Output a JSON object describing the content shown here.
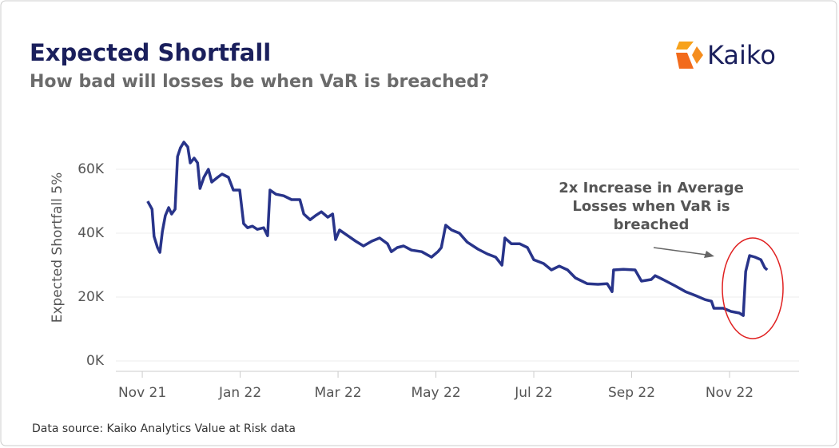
{
  "chart_data": {
    "type": "line",
    "title": "Expected Shortfall",
    "subtitle": "How bad will losses be when VaR is breached?",
    "brand": "Kaiko",
    "y_label": "Expected Shortfall 5%",
    "annotation": "2x Increase in Average Losses when VaR is breached",
    "source": "Data source: Kaiko Analytics Value at Risk data",
    "xlim": [
      -0.54,
      13.42
    ],
    "xticks": [
      {
        "value": 0,
        "label": "Nov 21"
      },
      {
        "value": 2,
        "label": "Jan 22"
      },
      {
        "value": 4,
        "label": "Mar 22"
      },
      {
        "value": 6,
        "label": "May 22"
      },
      {
        "value": 8,
        "label": "Jul 22"
      },
      {
        "value": 10,
        "label": "Sep 22"
      },
      {
        "value": 12,
        "label": "Nov 22"
      }
    ],
    "ylim": [
      -3250,
      70000
    ],
    "yticks": [
      {
        "value": 0,
        "label": "0K"
      },
      {
        "value": 20000,
        "label": "20K"
      },
      {
        "value": 40000,
        "label": "40K"
      },
      {
        "value": 60000,
        "label": "60K"
      }
    ],
    "grid": true,
    "series": [
      {
        "name": "Expected Shortfall 5%",
        "color": "#28348a",
        "x": [
          0.11,
          0.2,
          0.24,
          0.31,
          0.36,
          0.41,
          0.47,
          0.54,
          0.6,
          0.67,
          0.72,
          0.78,
          0.85,
          0.93,
          0.98,
          1.06,
          1.13,
          1.18,
          1.26,
          1.35,
          1.42,
          1.54,
          1.63,
          1.76,
          1.86,
          1.99,
          2.07,
          2.15,
          2.25,
          2.35,
          2.48,
          2.56,
          2.61,
          2.73,
          2.89,
          3.05,
          3.22,
          3.3,
          3.43,
          3.54,
          3.66,
          3.79,
          3.89,
          3.95,
          4.03,
          4.2,
          4.36,
          4.52,
          4.69,
          4.85,
          5.01,
          5.09,
          5.21,
          5.34,
          5.5,
          5.71,
          5.91,
          6.04,
          6.11,
          6.2,
          6.32,
          6.48,
          6.64,
          6.86,
          7.05,
          7.22,
          7.35,
          7.41,
          7.54,
          7.71,
          7.87,
          8,
          8.2,
          8.36,
          8.52,
          8.69,
          8.85,
          9.09,
          9.31,
          9.5,
          9.6,
          9.63,
          9.83,
          10.07,
          10.2,
          10.4,
          10.48,
          10.64,
          10.89,
          11.1,
          11.3,
          11.5,
          11.63,
          11.68,
          11.87,
          12.03,
          12.2,
          12.28,
          12.33,
          12.41,
          12.52,
          12.64,
          12.72,
          12.77
        ],
        "values": [
          50000,
          47500,
          39000,
          35500,
          34000,
          40500,
          45500,
          48000,
          46000,
          47500,
          64000,
          66700,
          68500,
          67000,
          62000,
          63500,
          62000,
          54000,
          57500,
          60000,
          56000,
          57500,
          58500,
          57500,
          53500,
          53500,
          43000,
          41700,
          42200,
          41200,
          41700,
          39200,
          53500,
          52200,
          51700,
          50500,
          50500,
          46000,
          44200,
          45500,
          46700,
          45000,
          46000,
          38000,
          41000,
          39200,
          37500,
          36000,
          37500,
          38500,
          36700,
          34200,
          35500,
          36000,
          34700,
          34200,
          32500,
          34200,
          35500,
          42500,
          41000,
          40000,
          37200,
          35000,
          33500,
          32500,
          30000,
          38500,
          36700,
          36700,
          35500,
          31700,
          30500,
          28500,
          29700,
          28500,
          26000,
          24200,
          24000,
          24200,
          21700,
          28500,
          28700,
          28500,
          25000,
          25500,
          26700,
          25500,
          23500,
          21700,
          20500,
          19200,
          18700,
          16500,
          16500,
          15500,
          15000,
          14200,
          28000,
          33000,
          32500,
          31700,
          29200,
          28500
        ]
      }
    ]
  }
}
